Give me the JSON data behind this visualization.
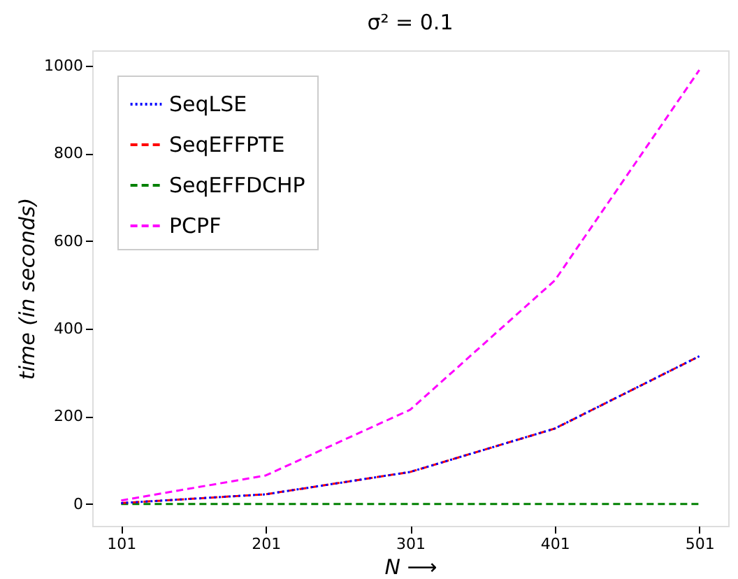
{
  "chart_data": {
    "type": "line",
    "title": "σ² = 0.1",
    "xlabel": "N ⟶",
    "ylabel": "time (in seconds)",
    "x": [
      101,
      201,
      301,
      401,
      501
    ],
    "series": [
      {
        "name": "SeqLSE",
        "color": "#0000ff",
        "line_style": "dotted",
        "values": [
          2,
          22,
          73,
          172,
          337
        ]
      },
      {
        "name": "SeqEFFPTE",
        "color": "#ff0000",
        "line_style": "dashed",
        "values": [
          2,
          22,
          73,
          172,
          337
        ]
      },
      {
        "name": "SeqEFFDCHP",
        "color": "#008000",
        "line_style": "dashed",
        "values": [
          0,
          0,
          0,
          0,
          0
        ]
      },
      {
        "name": "PCPF",
        "color": "#ff00ff",
        "line_style": "dashed",
        "values": [
          8,
          65,
          215,
          510,
          990
        ]
      }
    ],
    "xlim": [
      81,
      521
    ],
    "ylim": [
      -50,
      1035
    ],
    "xticks": [
      101,
      201,
      301,
      401,
      501
    ],
    "yticks": [
      0,
      200,
      400,
      600,
      800,
      1000
    ],
    "grid": false,
    "legend": "top left",
    "marker": "none"
  }
}
